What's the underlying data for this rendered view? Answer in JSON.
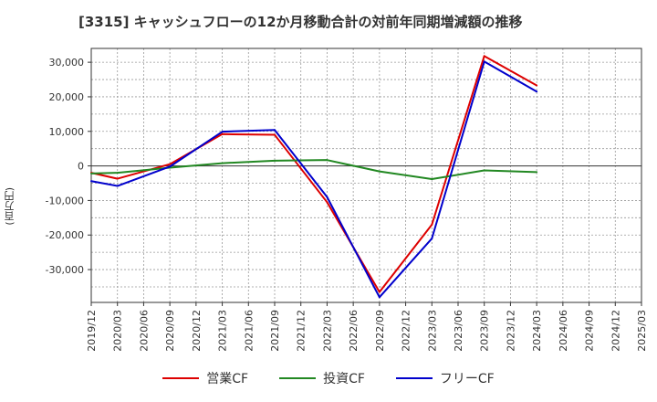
{
  "chart_data": {
    "type": "line",
    "title": "[3315]  キャッシュフローの12か月移動合計の対前年同期増減額の推移",
    "ylabel": "(百万円)",
    "ylim": [
      -39500,
      34000
    ],
    "yticks": [
      30000,
      20000,
      10000,
      0,
      -10000,
      -20000,
      -30000
    ],
    "ytick_labels": [
      "30,000",
      "20,000",
      "10,000",
      "0",
      "-10,000",
      "-20,000",
      "-30,000"
    ],
    "x_labels": [
      "2019/12",
      "2020/03",
      "2020/06",
      "2020/09",
      "2020/12",
      "2021/03",
      "2021/06",
      "2021/09",
      "2021/12",
      "2022/03",
      "2022/06",
      "2022/09",
      "2022/12",
      "2023/03",
      "2023/06",
      "2023/09",
      "2023/12",
      "2024/03",
      "2024/06",
      "2024/09",
      "2024/12",
      "2025/03"
    ],
    "series": [
      {
        "name": "営業CF",
        "color": "#dd0000",
        "values": [
          -2000,
          -3700,
          null,
          500,
          null,
          9200,
          null,
          9000,
          null,
          -10500,
          null,
          -36500,
          null,
          -17000,
          null,
          31800,
          null,
          23300,
          null,
          null,
          null,
          null
        ]
      },
      {
        "name": "投資CF",
        "color": "#228822",
        "values": [
          -2200,
          -2000,
          null,
          -500,
          null,
          800,
          null,
          1500,
          null,
          1700,
          null,
          -1600,
          null,
          -3800,
          null,
          -1300,
          null,
          -1800,
          null,
          null,
          null,
          null
        ]
      },
      {
        "name": "フリーCF",
        "color": "#0000cc",
        "values": [
          -4400,
          -5800,
          null,
          -200,
          null,
          9900,
          null,
          10400,
          null,
          -9000,
          null,
          -38000,
          null,
          -21000,
          null,
          30200,
          null,
          21500,
          null,
          null,
          null,
          null
        ]
      }
    ],
    "grid": true,
    "legend": "bottom"
  }
}
